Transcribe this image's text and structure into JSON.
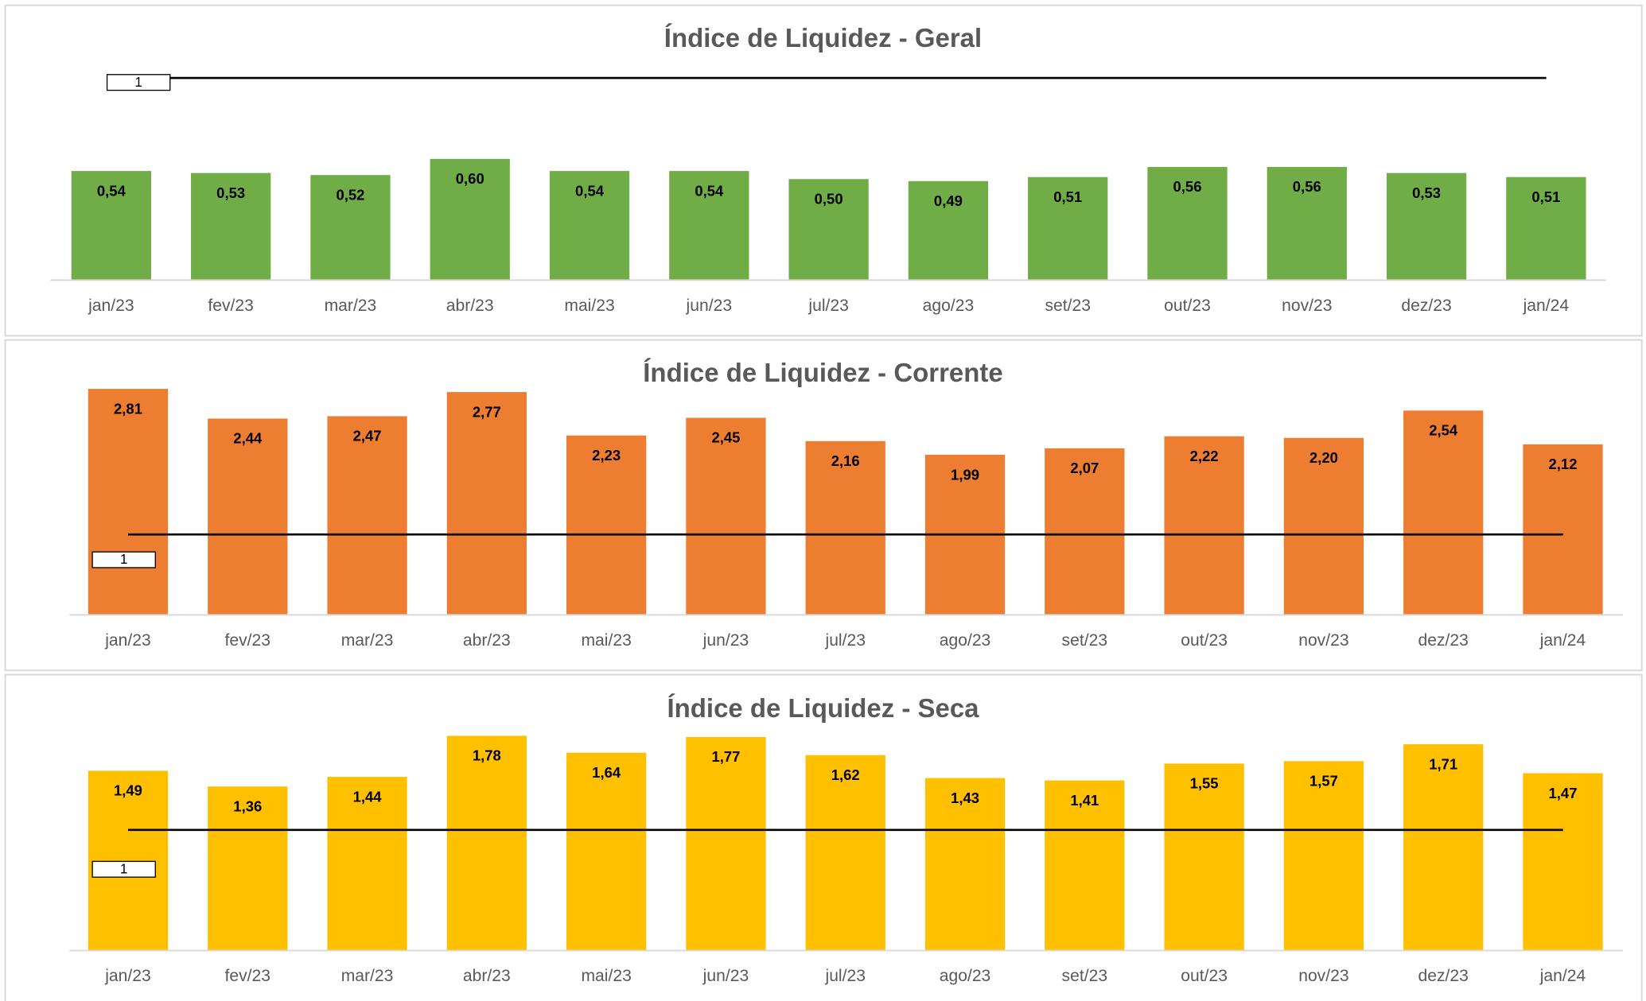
{
  "chart_data": [
    {
      "type": "bar",
      "title": "Índice de Liquidez - Geral",
      "color": "#70ad47",
      "categories": [
        "jan/23",
        "fev/23",
        "mar/23",
        "abr/23",
        "mai/23",
        "jun/23",
        "jul/23",
        "ago/23",
        "set/23",
        "out/23",
        "nov/23",
        "dez/23",
        "jan/24"
      ],
      "values": [
        0.54,
        0.53,
        0.52,
        0.6,
        0.54,
        0.54,
        0.5,
        0.49,
        0.51,
        0.56,
        0.56,
        0.53,
        0.51
      ],
      "value_labels": [
        "0,54",
        "0,53",
        "0,52",
        "0,60",
        "0,54",
        "0,54",
        "0,50",
        "0,49",
        "0,51",
        "0,56",
        "0,56",
        "0,53",
        "0,51"
      ],
      "ylim": [
        0,
        1.1
      ],
      "reference_value": 1
    },
    {
      "type": "bar",
      "title": "Índice de Liquidez - Corrente",
      "color": "#ed7d31",
      "categories": [
        "jan/23",
        "fev/23",
        "mar/23",
        "abr/23",
        "mai/23",
        "jun/23",
        "jul/23",
        "ago/23",
        "set/23",
        "out/23",
        "nov/23",
        "dez/23",
        "jan/24"
      ],
      "values": [
        2.81,
        2.44,
        2.47,
        2.77,
        2.23,
        2.45,
        2.16,
        1.99,
        2.07,
        2.22,
        2.2,
        2.54,
        2.12
      ],
      "value_labels": [
        "2,81",
        "2,44",
        "2,47",
        "2,77",
        "2,23",
        "2,45",
        "2,16",
        "1,99",
        "2,07",
        "2,22",
        "2,20",
        "2,54",
        "2,12"
      ],
      "ylim": [
        0,
        3
      ],
      "reference_value": 1
    },
    {
      "type": "bar",
      "title": "Índice de Liquidez - Seca",
      "color": "#ffc000",
      "categories": [
        "jan/23",
        "fev/23",
        "mar/23",
        "abr/23",
        "mai/23",
        "jun/23",
        "jul/23",
        "ago/23",
        "set/23",
        "out/23",
        "nov/23",
        "dez/23",
        "jan/24"
      ],
      "values": [
        1.49,
        1.36,
        1.44,
        1.78,
        1.64,
        1.77,
        1.62,
        1.43,
        1.41,
        1.55,
        1.57,
        1.71,
        1.47
      ],
      "value_labels": [
        "1,49",
        "1,36",
        "1,44",
        "1,78",
        "1,64",
        "1,77",
        "1,62",
        "1,43",
        "1,41",
        "1,55",
        "1,57",
        "1,71",
        "1,47"
      ],
      "ylim": [
        0,
        2
      ],
      "reference_value": 1
    }
  ]
}
